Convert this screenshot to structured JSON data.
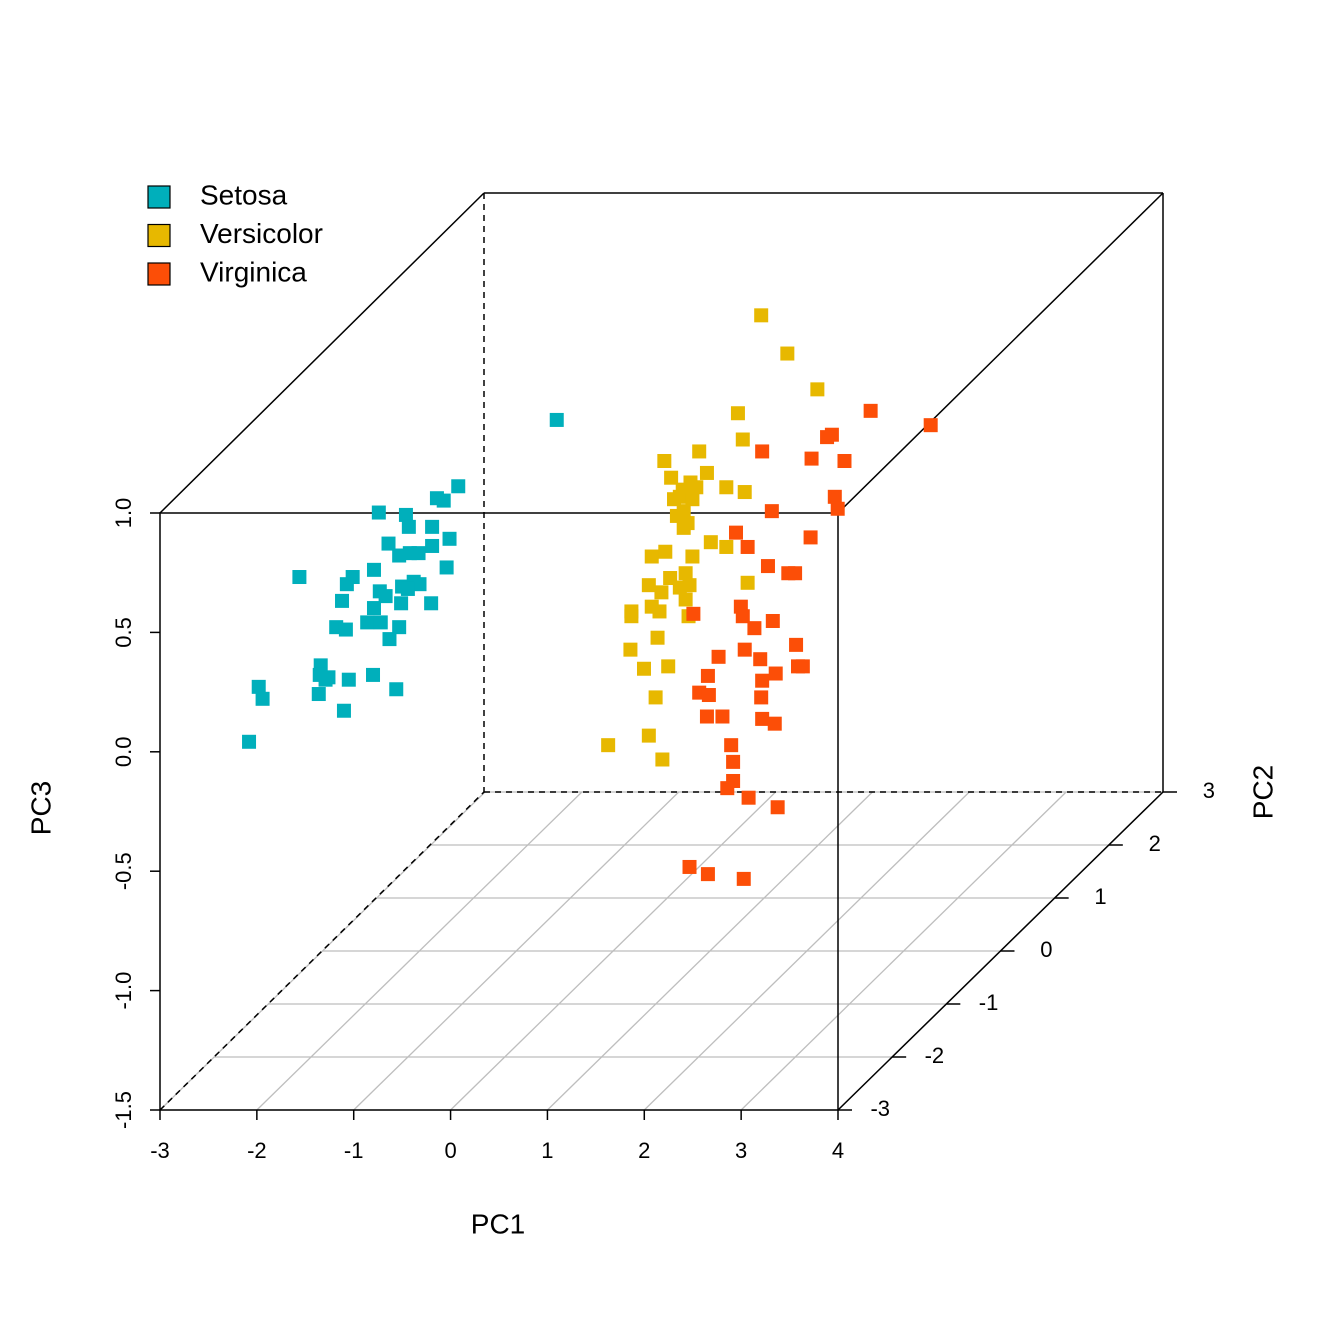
{
  "chart_data": {
    "type": "scatter3d",
    "xlabel": "PC1",
    "ylabel": "PC2",
    "zlabel": "PC3",
    "xlim": [
      -3,
      4
    ],
    "ylim": [
      -3,
      3
    ],
    "zlim": [
      -1.5,
      1.0
    ],
    "xticks": [
      -3,
      -2,
      -1,
      0,
      1,
      2,
      3,
      4
    ],
    "yticks": [
      -3,
      -2,
      -1,
      0,
      1,
      2,
      3
    ],
    "zticks": [
      -1.5,
      {
        "value": -1.0,
        "label": "-1.0"
      },
      -0.5,
      {
        "value": 0.0,
        "label": "0.0"
      },
      0.5,
      {
        "value": 1.0,
        "label": "1.0"
      }
    ],
    "grid": true,
    "legend": "topleft",
    "series": [
      {
        "name": "Setosa",
        "color": "#00AFBB",
        "x": [
          -1.7,
          -0.48,
          -0.7,
          -0.63,
          -1.3,
          -1.02,
          -0.75,
          -0.99,
          -0.57,
          -1.2,
          -0.75,
          -1.09,
          -0.98,
          -0.89,
          -0.6,
          -1.35,
          -2.12,
          -1.57,
          -1.63,
          -0.94,
          -1.06,
          -0.88,
          -1.0,
          -1.29,
          -1.23,
          -1.68,
          -1.07,
          -0.76,
          -1.35,
          -1.42,
          -1.28,
          -1.09,
          -1.74,
          -1.64,
          -1.19,
          -1.9,
          -1.91,
          -1.82,
          -1.61,
          -1.36,
          -2.54,
          -1.85,
          -1.92,
          -2.5,
          -1.12,
          -1.66,
          -2.64
        ],
        "y": [
          2,
          -2,
          -2,
          -2,
          -2,
          -2,
          -2,
          -2,
          -2,
          -2,
          -2,
          -2,
          -2,
          -2,
          -2,
          -2,
          -2,
          -2,
          -2,
          -2,
          -2,
          -2,
          -2,
          -2,
          -2,
          -2,
          -2,
          -2,
          -2,
          -2,
          -2,
          -2,
          -2,
          -2,
          -2,
          -2,
          -2,
          -2,
          -2,
          -2,
          -2,
          -2,
          -2,
          -2,
          -2,
          -2,
          -2
        ],
        "z": [
          0.28,
          0.89,
          0.84,
          0.83,
          0.78,
          0.77,
          0.72,
          0.72,
          0.67,
          0.65,
          0.64,
          0.6,
          0.61,
          0.61,
          0.55,
          0.54,
          0.51,
          0.51,
          0.48,
          0.49,
          0.47,
          0.48,
          0.46,
          0.45,
          0.43,
          0.41,
          0.4,
          0.4,
          0.38,
          0.32,
          0.32,
          0.3,
          0.3,
          0.29,
          0.25,
          0.14,
          0.1,
          0.09,
          0.08,
          0.1,
          0.05,
          0.08,
          0.02,
          0.0,
          0.04,
          -0.05,
          -0.18
        ]
      },
      {
        "name": "Versicolor",
        "color": "#E7B800",
        "x": [
          0.97,
          1.24,
          1.55,
          0.73,
          0.78,
          0.33,
          -0.03,
          0.41,
          0.04,
          0.24,
          0.16,
          0.3,
          0.61,
          0.8,
          0.13,
          0.07,
          0.26,
          0.17,
          0.1,
          0.21,
          0.17,
          0.45,
          0.61,
          0.26,
          -0.16,
          -0.02,
          0.03,
          0.19,
          -0.19,
          0.13,
          0.23,
          -0.06,
          0.19,
          0.83,
          -0.16,
          -0.37,
          -0.37,
          -0.08,
          -0.1,
          0.22,
          -0.38,
          -0.24,
          0.01,
          -0.12,
          -0.19,
          -0.61,
          -0.05
        ],
        "y": [
          1,
          1,
          1,
          1,
          1,
          1,
          1,
          1,
          1,
          1,
          1,
          1,
          1,
          1,
          1,
          1,
          1,
          1,
          1,
          1,
          1,
          1,
          1,
          1,
          1,
          1,
          1,
          1,
          1,
          1,
          1,
          1,
          1,
          1,
          1,
          1,
          1,
          1,
          1,
          1,
          1,
          1,
          1,
          1,
          1,
          1,
          1
        ],
        "z": [
          0.94,
          0.78,
          0.63,
          0.53,
          0.42,
          0.37,
          0.33,
          0.28,
          0.26,
          0.24,
          0.21,
          0.22,
          0.22,
          0.2,
          0.18,
          0.17,
          0.17,
          0.12,
          0.1,
          0.07,
          0.05,
          -0.01,
          -0.03,
          -0.07,
          -0.07,
          -0.05,
          -0.16,
          -0.14,
          -0.19,
          -0.2,
          -0.19,
          -0.22,
          -0.25,
          -0.18,
          -0.28,
          -0.3,
          -0.32,
          -0.3,
          -0.41,
          -0.32,
          -0.46,
          -0.54,
          -0.53,
          -0.66,
          -0.82,
          -0.86,
          -0.92
        ]
      },
      {
        "name": "Virginica",
        "color": "#FC4E07",
        "x": [
          2.72,
          2.1,
          1.7,
          1.65,
          0.98,
          1.49,
          1.83,
          1.73,
          1.08,
          1.76,
          1.48,
          0.71,
          0.83,
          1.04,
          1.25,
          1.32,
          0.27,
          0.76,
          0.78,
          0.9,
          1.09,
          0.53,
          0.8,
          0.96,
          1.33,
          1.35,
          1.4,
          0.42,
          0.98,
          0.33,
          0.43,
          1.12,
          0.97,
          0.41,
          0.57,
          0.98,
          1.11,
          0.66,
          0.68,
          0.68,
          0.62,
          0.84,
          1.14,
          0.23,
          0.42,
          0.79
        ],
        "y": [
          1,
          1,
          1,
          1,
          1,
          1,
          1,
          1,
          1,
          1,
          1,
          1,
          1,
          1,
          1,
          1,
          1,
          1,
          1,
          1,
          1,
          1,
          1,
          1,
          1,
          1,
          1,
          1,
          1,
          1,
          1,
          1,
          1,
          1,
          1,
          1,
          1,
          1,
          1,
          1,
          1,
          1,
          1,
          1,
          1,
          1
        ],
        "z": [
          0.48,
          0.54,
          0.44,
          0.43,
          0.37,
          0.34,
          0.33,
          0.18,
          0.12,
          0.13,
          0.01,
          0.03,
          -0.03,
          -0.11,
          -0.14,
          -0.14,
          -0.31,
          -0.28,
          -0.32,
          -0.37,
          -0.34,
          -0.49,
          -0.46,
          -0.5,
          -0.44,
          -0.53,
          -0.53,
          -0.57,
          -0.59,
          -0.64,
          -0.65,
          -0.56,
          -0.66,
          -0.74,
          -0.74,
          -0.75,
          -0.77,
          -0.86,
          -0.93,
          -1.01,
          -1.04,
          -1.08,
          -1.12,
          -1.37,
          -1.4,
          -1.42
        ]
      }
    ]
  }
}
